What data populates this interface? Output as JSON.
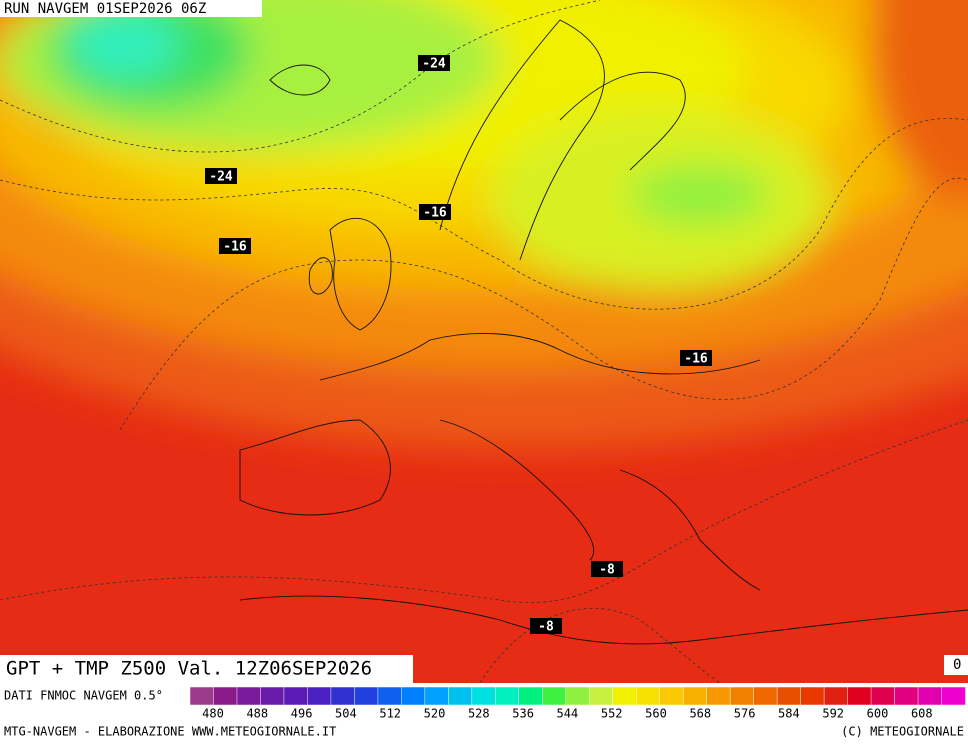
{
  "header": {
    "run": "RUN NAVGEM 01SEP2026 06Z"
  },
  "contour_labels": [
    "-24",
    "-24",
    "-16",
    "-16",
    "-16",
    "-8",
    "-8"
  ],
  "title": "GPT + TMP Z500 Val. 12Z06SEP2026",
  "corner_label": "0",
  "legend": {
    "source": "DATI FNMOC NAVGEM 0.5°",
    "labels": [
      "480",
      "488",
      "496",
      "504",
      "512",
      "520",
      "528",
      "536",
      "544",
      "552",
      "560",
      "568",
      "576",
      "584",
      "592",
      "600",
      "608"
    ],
    "colors": [
      "#9b3a8a",
      "#8a1a8a",
      "#7a1a9a",
      "#6a1aaa",
      "#5a1ab4",
      "#4a20c0",
      "#3030d0",
      "#2040e0",
      "#1060f0",
      "#0080ff",
      "#00a0ff",
      "#00c0f0",
      "#00e0e0",
      "#00f0c0",
      "#00f080",
      "#40f040",
      "#90f040",
      "#c8f040",
      "#f0f000",
      "#f8e000",
      "#f8c800",
      "#f8b000",
      "#f89800",
      "#f08000",
      "#f06800",
      "#e85000",
      "#e83800",
      "#e02010",
      "#e00020",
      "#e00050",
      "#e00080",
      "#e000b0",
      "#f000d0"
    ]
  },
  "footer": {
    "left": "MTG-NAVGEM - ELABORAZIONE WWW.METEOGIORNALE.IT",
    "right": "(C) METEOGIORNALE"
  }
}
